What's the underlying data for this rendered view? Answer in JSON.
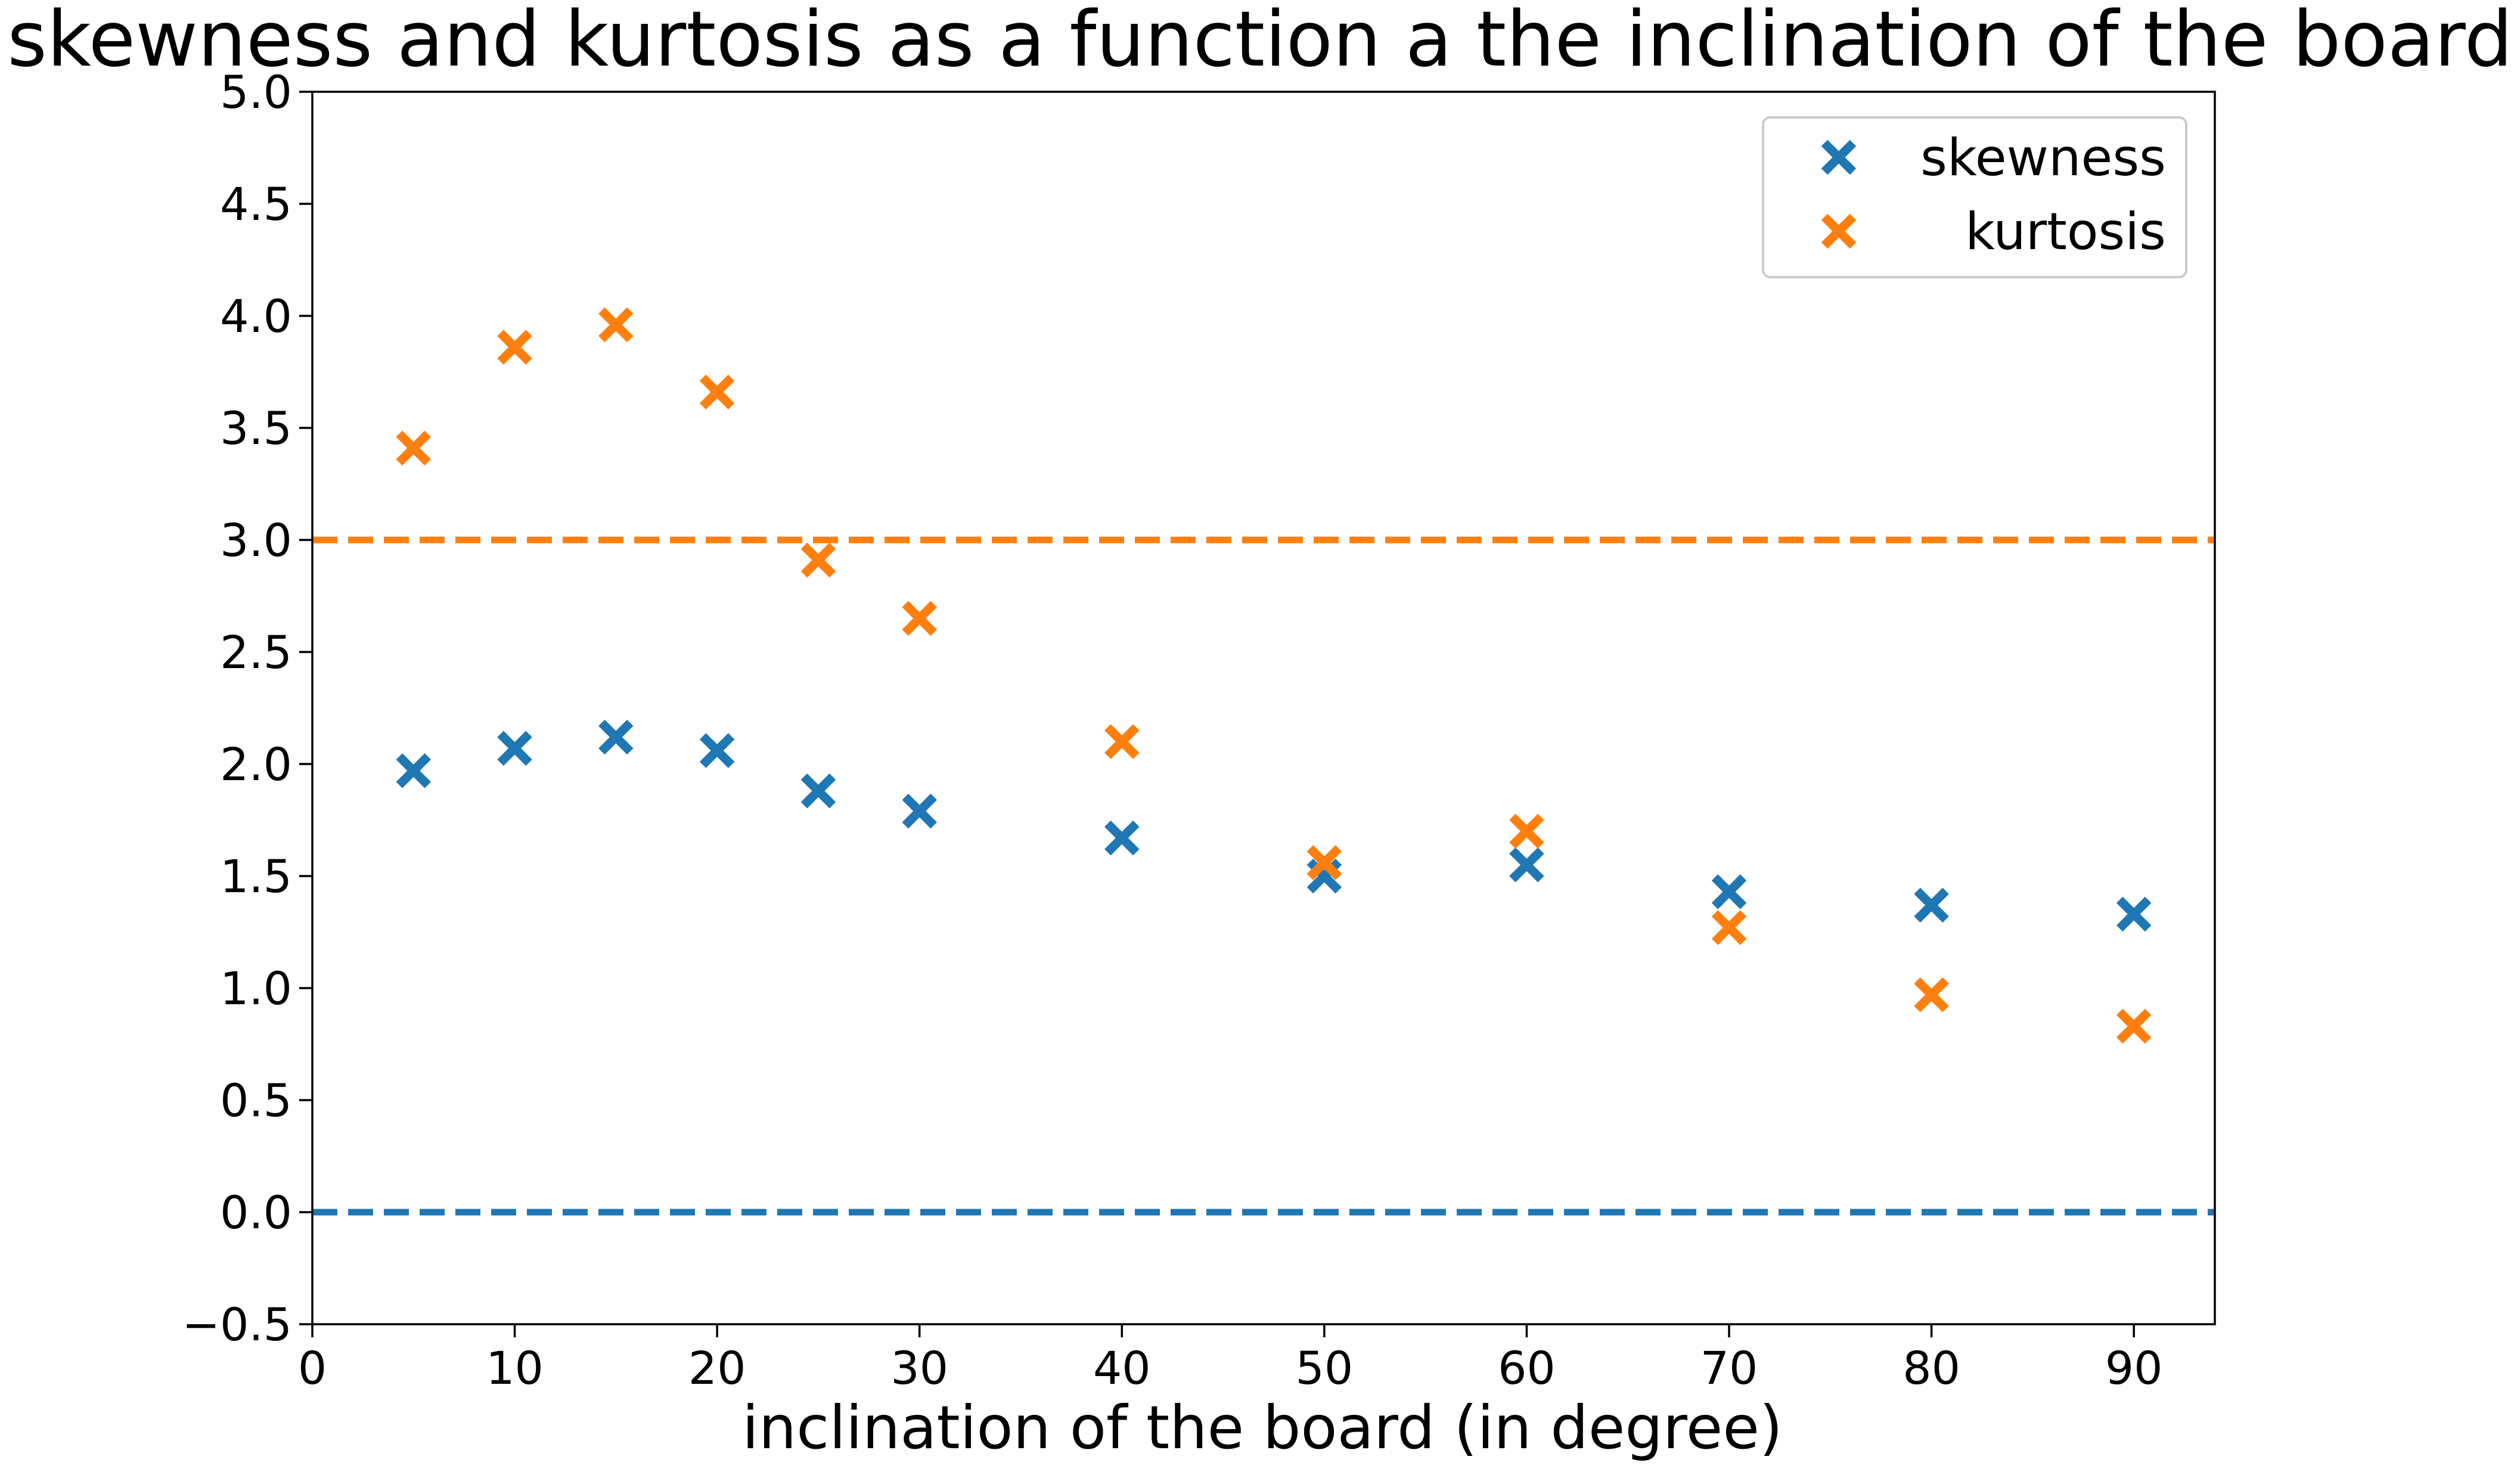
{
  "chart_data": {
    "type": "scatter",
    "title": "skewness and kurtosis as a function a the inclination of the board",
    "xlabel": "inclination of the board (in degree)",
    "ylabel": "",
    "xlim": [
      0,
      94
    ],
    "ylim": [
      -0.5,
      5.0
    ],
    "xticks": [
      "0",
      "10",
      "20",
      "30",
      "40",
      "50",
      "60",
      "70",
      "80",
      "90"
    ],
    "yticks": [
      "−0.5",
      "0.0",
      "0.5",
      "1.0",
      "1.5",
      "2.0",
      "2.5",
      "3.0",
      "3.5",
      "4.0",
      "4.5",
      "5.0"
    ],
    "grid": false,
    "legend_position": "top-right",
    "marker": "x-filled",
    "x": [
      5,
      10,
      15,
      20,
      25,
      30,
      40,
      50,
      60,
      70,
      80,
      90
    ],
    "series": [
      {
        "name": "skewness",
        "color": "#1f77b4",
        "values": [
          1.97,
          2.07,
          2.12,
          2.06,
          1.88,
          1.79,
          1.67,
          1.5,
          1.55,
          1.43,
          1.37,
          1.33
        ]
      },
      {
        "name": "kurtosis",
        "color": "#ff7f0e",
        "values": [
          3.41,
          3.86,
          3.96,
          3.66,
          2.91,
          2.65,
          2.1,
          1.56,
          1.7,
          1.27,
          0.97,
          0.83
        ]
      }
    ],
    "reference_lines": [
      {
        "y": 0.0,
        "style": "dashed",
        "color": "#1f77b4"
      },
      {
        "y": 3.0,
        "style": "dashed",
        "color": "#ff7f0e"
      }
    ]
  }
}
